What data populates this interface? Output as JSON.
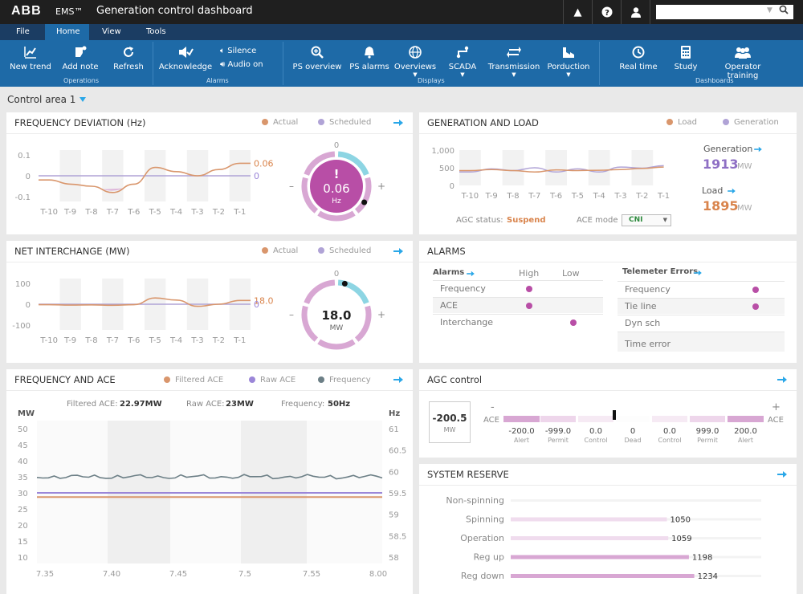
{
  "top": {
    "logo": "ABB",
    "app": "EMS™",
    "title": "Generation control dashboard"
  },
  "menu": [
    "File",
    "Home",
    "View",
    "Tools"
  ],
  "ribbon": {
    "new_trend": "New trend",
    "add_note": "Add note",
    "refresh": "Refresh",
    "operations": "Operations",
    "acknowledge": "Acknowledge",
    "silence": "Silence",
    "audio_on": "Audio on",
    "alarms": "Alarms",
    "ps_overview": "PS overview",
    "ps_alarms": "PS alarms",
    "overviews": "Overviews",
    "scada": "SCADA",
    "transmission": "Transmission",
    "porduction": "Porduction",
    "displays": "Displays",
    "real_time": "Real time",
    "study": "Study",
    "operator_training": "Operator training",
    "dashboards": "Dashboards"
  },
  "control_area": "Control area 1",
  "colors": {
    "actual": "#d9966c",
    "scheduled": "#b0a3d6",
    "magenta": "#b84ea6",
    "pink": "#d8a7d3",
    "teal": "#8dd5e3",
    "blue": "#2aa7e8",
    "gray": "#6c7f86"
  },
  "freq_dev": {
    "title": "FREQUENCY DEVIATION (Hz)",
    "actual": "Actual",
    "scheduled": "Scheduled",
    "yticks": [
      "0.1",
      "0",
      "-0.1"
    ],
    "xticks": [
      "T-10",
      "T-9",
      "T-8",
      "T-7",
      "T-6",
      "T-5",
      "T-4",
      "T-3",
      "T-2",
      "T-1"
    ],
    "actual_last": "0.06",
    "scheduled_last": "0",
    "gauge_top": "0",
    "gauge_value": "0.06",
    "gauge_unit": "Hz",
    "gauge_alert": "!",
    "minus": "–",
    "plus": "+",
    "actual_series": [
      -0.02,
      -0.04,
      -0.05,
      -0.08,
      -0.04,
      0.04,
      0.02,
      0.0,
      0.03,
      0.06
    ],
    "scheduled_series": [
      0,
      0,
      0,
      0,
      0,
      0,
      0,
      0,
      0,
      0
    ]
  },
  "gen_load": {
    "title": "GENERATION AND LOAD",
    "load": "Load",
    "generation": "Generation",
    "yticks": [
      "1,000",
      "500",
      "0"
    ],
    "xticks": [
      "T-10",
      "T-9",
      "T-8",
      "T-7",
      "T-6",
      "T-5",
      "T-4",
      "T-3",
      "T-2",
      "T-1"
    ],
    "gen_label": "Generation",
    "gen_value": "1913",
    "gen_unit": "MW",
    "load_label": "Load",
    "load_value": "1895",
    "load_unit": "MW",
    "agc_label": "AGC status:",
    "agc_value": "Suspend",
    "ace_mode_label": "ACE mode",
    "ace_mode_value": "CNI",
    "load_series": [
      420,
      450,
      420,
      380,
      440,
      420,
      430,
      450,
      480,
      520
    ],
    "gen_series": [
      380,
      470,
      420,
      500,
      380,
      470,
      380,
      520,
      490,
      560
    ]
  },
  "net_int": {
    "title": "NET INTERCHANGE (MW)",
    "actual": "Actual",
    "scheduled": "Scheduled",
    "yticks": [
      "100",
      "0",
      "-100"
    ],
    "xticks": [
      "T-10",
      "T-9",
      "T-8",
      "T-7",
      "T-6",
      "T-5",
      "T-4",
      "T-3",
      "T-2",
      "T-1"
    ],
    "actual_last": "18.0",
    "scheduled_last": "0",
    "gauge_top": "0",
    "gauge_value": "18.0",
    "gauge_unit": "MW",
    "minus": "–",
    "plus": "+",
    "actual_series": [
      -2,
      -4,
      -3,
      -5,
      -2,
      30,
      20,
      -10,
      0,
      18
    ],
    "scheduled_series": [
      0,
      0,
      0,
      0,
      0,
      0,
      0,
      0,
      0,
      0
    ]
  },
  "alarms": {
    "title": "ALARMS",
    "alarms_hdr": "Alarms",
    "high": "High",
    "low": "Low",
    "telemeter_hdr": "Telemeter Errors",
    "rows": [
      {
        "name": "Frequency"
      },
      {
        "name": "ACE"
      },
      {
        "name": "Interchange"
      }
    ],
    "trows": [
      {
        "name": "Frequency"
      },
      {
        "name": "Tie line"
      },
      {
        "name": "Dyn sch"
      },
      {
        "name": "Time error"
      }
    ]
  },
  "freq_ace": {
    "title": "FREQUENCY AND ACE",
    "filtered": "Filtered ACE",
    "raw": "Raw ACE",
    "frequency": "Frequency",
    "filtered_label": "Filtered ACE:",
    "filtered_value": "22.97MW",
    "raw_label": "Raw ACE:",
    "raw_value": "23MW",
    "freq_label": "Frequency:",
    "freq_value": "50Hz",
    "left_unit": "MW",
    "right_unit": "Hz",
    "left_ticks": [
      "50",
      "45",
      "40",
      "35",
      "30",
      "25",
      "20",
      "15",
      "10"
    ],
    "right_ticks": [
      "61",
      "60.5",
      "60",
      "59.5",
      "59",
      "58.5",
      "58"
    ],
    "xticks": [
      "7.35",
      "7.40",
      "7.45",
      "7.5",
      "7.55",
      "8.00"
    ],
    "raw_level": 30,
    "filtered_level": 28.7,
    "freq_level": 35
  },
  "agc": {
    "title": "AGC control",
    "box_value": "-200.5",
    "box_unit": "MW",
    "minus": "-",
    "plus": "+",
    "ace": "ACE",
    "scale": [
      {
        "v": "-200.0",
        "l": "Alert"
      },
      {
        "v": "-999.0",
        "l": "Permit"
      },
      {
        "v": "0.0",
        "l": "Control"
      },
      {
        "v": "0",
        "l": "Dead"
      },
      {
        "v": "0.0",
        "l": "Control"
      },
      {
        "v": "999.0",
        "l": "Permit"
      },
      {
        "v": "200.0",
        "l": "Alert"
      }
    ]
  },
  "reserve": {
    "title": "SYSTEM RESERVE",
    "max": 1600,
    "rows": [
      {
        "name": "Non-spinning",
        "value": 0,
        "text": ""
      },
      {
        "name": "Spinning",
        "value": 1050,
        "text": "1050"
      },
      {
        "name": "Operation",
        "value": 1059,
        "text": "1059"
      },
      {
        "name": "Reg up",
        "value": 1198,
        "text": "1198"
      },
      {
        "name": "Reg down",
        "value": 1234,
        "text": "1234"
      }
    ]
  }
}
